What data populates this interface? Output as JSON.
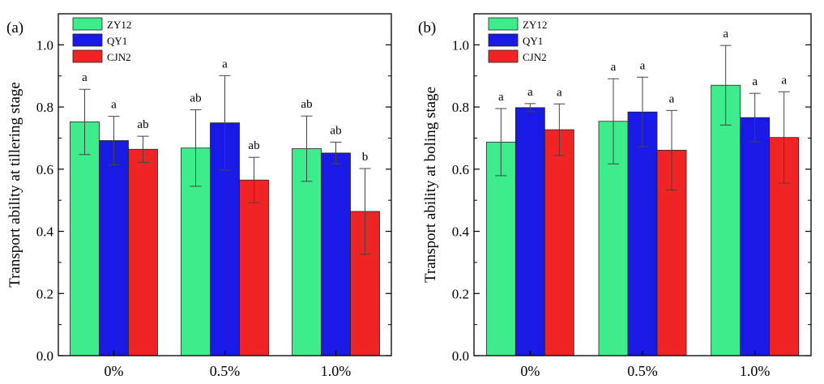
{
  "colors": {
    "ZY12": "#3ded8b",
    "QY1": "#1a1ae6",
    "CJN2": "#f02424",
    "axis": "#000000",
    "errorbar": "#444444"
  },
  "chart_data": [
    {
      "type": "bar",
      "panel_label": "(a)",
      "title": "",
      "xlabel": "",
      "ylabel": "Transport ability at tillering stage",
      "ylim": [
        0,
        1.1
      ],
      "yticks": [
        0.0,
        0.2,
        0.4,
        0.6,
        0.8,
        1.0
      ],
      "ytick_labels": [
        "0.0",
        "0.2",
        "0.4",
        "0.6",
        "0.8",
        "1.0"
      ],
      "grid": false,
      "legend_position": "top-left",
      "categories": [
        "0%",
        "0.5%",
        "1.0%"
      ],
      "series": [
        {
          "name": "ZY12",
          "values": [
            0.752,
            0.668,
            0.666
          ],
          "errors": [
            0.105,
            0.123,
            0.105
          ],
          "labels": [
            "a",
            "ab",
            "ab"
          ]
        },
        {
          "name": "QY1",
          "values": [
            0.692,
            0.749,
            0.652
          ],
          "errors": [
            0.078,
            0.152,
            0.035
          ],
          "labels": [
            "a",
            "a",
            "ab"
          ]
        },
        {
          "name": "CJN2",
          "values": [
            0.664,
            0.565,
            0.464
          ],
          "errors": [
            0.042,
            0.073,
            0.138
          ],
          "labels": [
            "ab",
            "ab",
            "b"
          ]
        }
      ]
    },
    {
      "type": "bar",
      "panel_label": "(b)",
      "title": "",
      "xlabel": "",
      "ylabel": "Transport ability at boling stage",
      "ylim": [
        0,
        1.1
      ],
      "yticks": [
        0.0,
        0.2,
        0.4,
        0.6,
        0.8,
        1.0
      ],
      "ytick_labels": [
        "0.0",
        "0.2",
        "0.4",
        "0.6",
        "0.8",
        "1.0"
      ],
      "grid": false,
      "legend_position": "top-left",
      "categories": [
        "0%",
        "0.5%",
        "1.0%"
      ],
      "series": [
        {
          "name": "ZY12",
          "values": [
            0.687,
            0.754,
            0.87
          ],
          "errors": [
            0.108,
            0.137,
            0.128
          ],
          "labels": [
            "a",
            "a",
            "a"
          ]
        },
        {
          "name": "QY1",
          "values": [
            0.798,
            0.784,
            0.766
          ],
          "errors": [
            0.013,
            0.112,
            0.078
          ],
          "labels": [
            "a",
            "a",
            "a"
          ]
        },
        {
          "name": "CJN2",
          "values": [
            0.727,
            0.661,
            0.702
          ],
          "errors": [
            0.083,
            0.128,
            0.147
          ],
          "labels": [
            "a",
            "a",
            "a"
          ]
        }
      ]
    }
  ]
}
